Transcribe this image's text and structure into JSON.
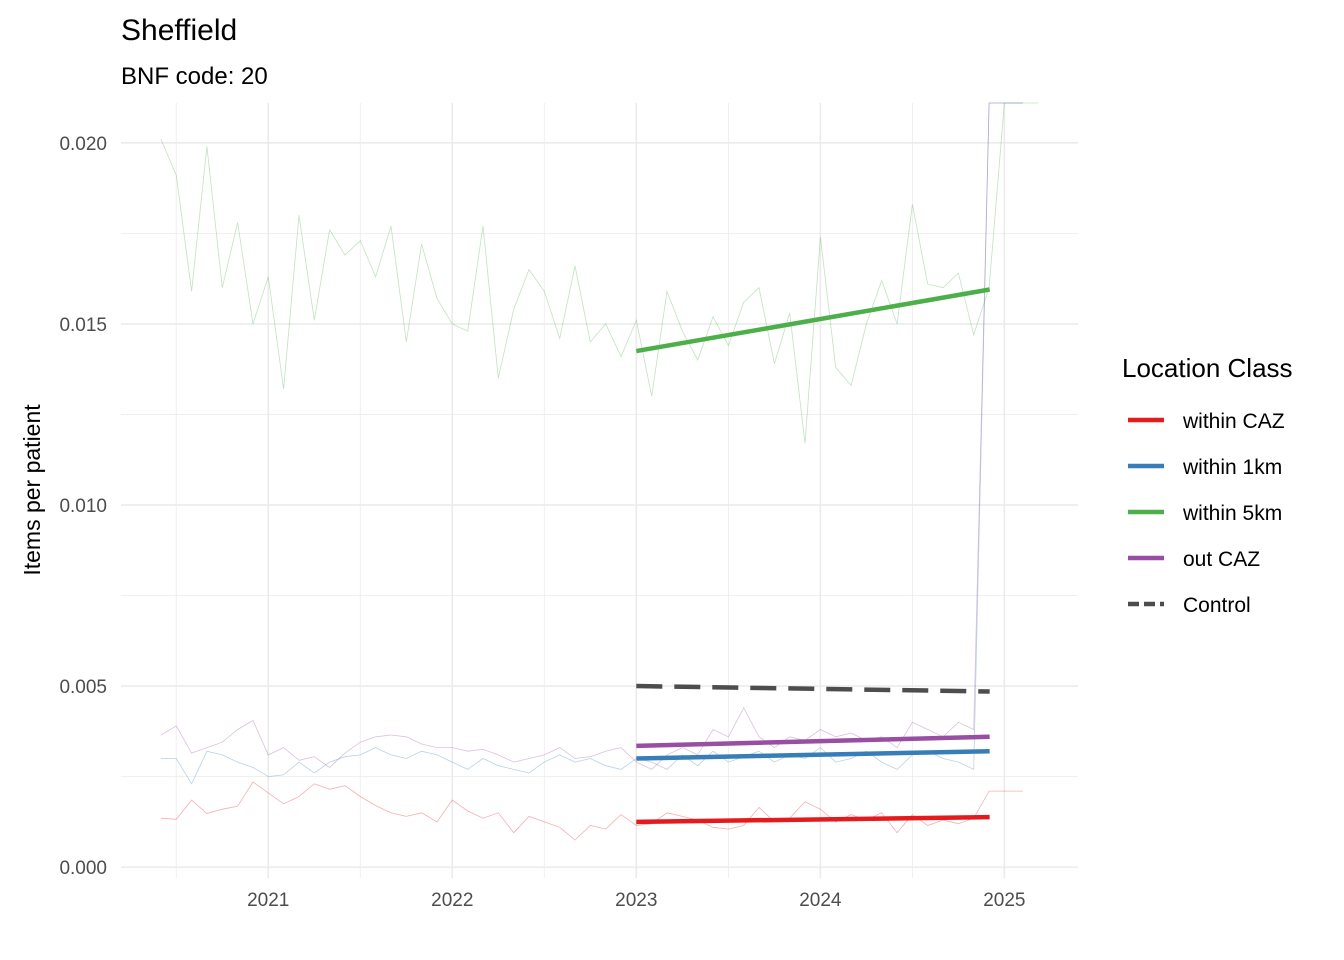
{
  "chart_data": {
    "type": "line",
    "title": "Sheffield",
    "subtitle": "BNF code: 20",
    "xlabel": "",
    "ylabel": "Items per patient",
    "xlim": [
      2020.2,
      2025.4
    ],
    "ylim": [
      -0.0003,
      0.0211
    ],
    "x_ticks": [
      2021,
      2022,
      2023,
      2024,
      2025
    ],
    "x_tick_labels": [
      "2021",
      "2022",
      "2023",
      "2024",
      "2025"
    ],
    "y_ticks": [
      0.0,
      0.005,
      0.01,
      0.015,
      0.02
    ],
    "y_tick_labels": [
      "0.000",
      "0.005",
      "0.010",
      "0.015",
      "0.020"
    ],
    "grid": true,
    "legend": {
      "title": "Location Class",
      "position": "right",
      "entries": [
        {
          "label": "within CAZ",
          "color": "#e41a1c",
          "dash": false
        },
        {
          "label": "within 1km",
          "color": "#377eb8",
          "dash": false
        },
        {
          "label": "within 5km",
          "color": "#4daf4a",
          "dash": false
        },
        {
          "label": "out CAZ",
          "color": "#984ea3",
          "dash": false
        },
        {
          "label": "Control",
          "color": "#4d4d4d",
          "dash": true
        }
      ]
    },
    "raw_x_start": 2020.417,
    "raw_x_step": 0.08333,
    "raw_series": [
      {
        "color": "#e41a1c",
        "values": [
          0.00135,
          0.00132,
          0.00185,
          0.00148,
          0.0016,
          0.00168,
          0.00235,
          0.00205,
          0.00175,
          0.00195,
          0.0023,
          0.00215,
          0.00225,
          0.00195,
          0.0017,
          0.0015,
          0.0014,
          0.0015,
          0.00125,
          0.00185,
          0.00155,
          0.00135,
          0.0015,
          0.00095,
          0.0014,
          0.00125,
          0.0011,
          0.00075,
          0.00115,
          0.00105,
          0.00145,
          0.00115,
          0.0012,
          0.0015,
          0.0014,
          0.0013,
          0.0011,
          0.00105,
          0.00115,
          0.00165,
          0.00125,
          0.00135,
          0.0018,
          0.0016,
          0.00125,
          0.00145,
          0.0013,
          0.0015,
          0.00095,
          0.00145,
          0.00115,
          0.0013,
          0.0012,
          0.00135,
          0.0021
        ]
      },
      {
        "color": "#377eb8",
        "values": [
          0.003,
          0.003,
          0.0023,
          0.0032,
          0.0031,
          0.0029,
          0.00275,
          0.0025,
          0.00255,
          0.0029,
          0.0026,
          0.0029,
          0.00305,
          0.0031,
          0.0033,
          0.0031,
          0.003,
          0.0032,
          0.0031,
          0.0029,
          0.0027,
          0.003,
          0.0028,
          0.0027,
          0.0026,
          0.0029,
          0.0031,
          0.0029,
          0.003,
          0.0028,
          0.0027,
          0.003,
          0.0029,
          0.0027,
          0.0031,
          0.0028,
          0.0032,
          0.0029,
          0.00305,
          0.0032,
          0.0029,
          0.0031,
          0.003,
          0.0033,
          0.0029,
          0.003,
          0.0032,
          0.0029,
          0.0027,
          0.0031,
          0.0032,
          0.003,
          0.0029,
          0.0027,
          0.0211
        ]
      },
      {
        "color": "#4daf4a",
        "values": [
          0.0201,
          0.0191,
          0.0159,
          0.0199,
          0.016,
          0.0178,
          0.015,
          0.0163,
          0.0132,
          0.018,
          0.0151,
          0.0176,
          0.0169,
          0.0173,
          0.0163,
          0.0177,
          0.0145,
          0.0172,
          0.0157,
          0.015,
          0.0148,
          0.0177,
          0.0135,
          0.0154,
          0.0165,
          0.0159,
          0.0146,
          0.0166,
          0.0145,
          0.015,
          0.0141,
          0.0151,
          0.013,
          0.0159,
          0.0148,
          0.014,
          0.0152,
          0.0144,
          0.0156,
          0.016,
          0.0139,
          0.0153,
          0.0117,
          0.0174,
          0.0138,
          0.0133,
          0.015,
          0.0162,
          0.015,
          0.0183,
          0.0161,
          0.016,
          0.0164,
          0.0147,
          0.016,
          0.0211
        ]
      },
      {
        "color": "#984ea3",
        "values": [
          0.00365,
          0.0039,
          0.00315,
          0.0033,
          0.00345,
          0.0038,
          0.00405,
          0.0031,
          0.0033,
          0.00295,
          0.00305,
          0.00275,
          0.00315,
          0.00345,
          0.0036,
          0.00365,
          0.0036,
          0.0034,
          0.0033,
          0.0033,
          0.0032,
          0.00325,
          0.0031,
          0.0029,
          0.003,
          0.0031,
          0.0033,
          0.003,
          0.00305,
          0.0032,
          0.0033,
          0.0029,
          0.0027,
          0.0031,
          0.0033,
          0.0031,
          0.0038,
          0.0036,
          0.0044,
          0.0036,
          0.0033,
          0.0036,
          0.0035,
          0.0038,
          0.0036,
          0.0037,
          0.0035,
          0.0036,
          0.0033,
          0.004,
          0.0038,
          0.0036,
          0.004,
          0.0038,
          0.0211
        ]
      }
    ],
    "trend_series": [
      {
        "name": "within 5km",
        "color": "#4daf4a",
        "dash": false,
        "x": [
          2023.0,
          2024.92
        ],
        "y": [
          0.01425,
          0.01595
        ]
      },
      {
        "name": "Control",
        "color": "#4d4d4d",
        "dash": true,
        "x": [
          2023.0,
          2024.92
        ],
        "y": [
          0.005,
          0.00485
        ]
      },
      {
        "name": "out CAZ",
        "color": "#984ea3",
        "dash": false,
        "x": [
          2023.0,
          2024.92
        ],
        "y": [
          0.00335,
          0.0036
        ]
      },
      {
        "name": "within 1km",
        "color": "#377eb8",
        "dash": false,
        "x": [
          2023.0,
          2024.92
        ],
        "y": [
          0.003,
          0.0032
        ]
      },
      {
        "name": "within CAZ",
        "color": "#e41a1c",
        "dash": false,
        "x": [
          2023.0,
          2024.92
        ],
        "y": [
          0.00125,
          0.00138
        ]
      }
    ]
  }
}
